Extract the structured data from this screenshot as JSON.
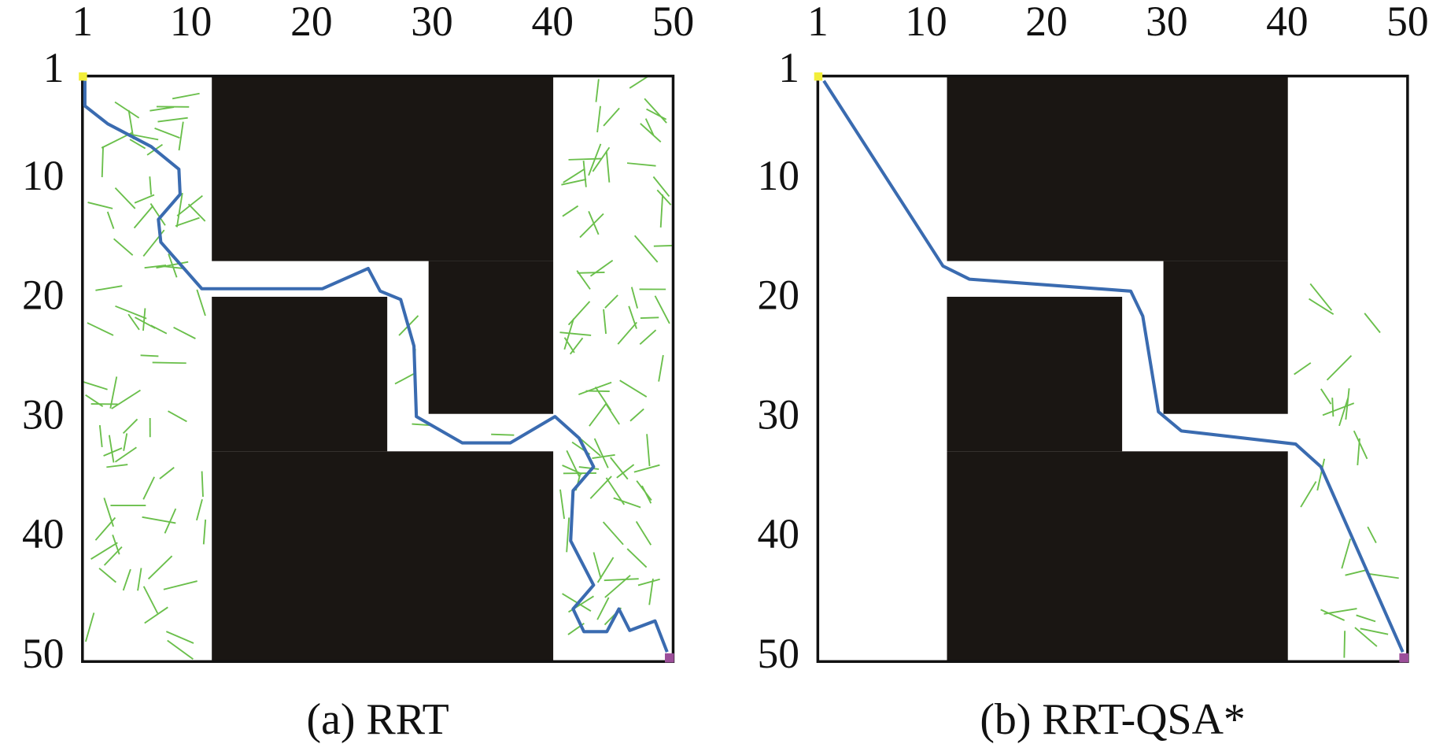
{
  "chart_data": [
    {
      "type": "line",
      "caption": "(a) RRT",
      "y_inverted": true,
      "color": "#3a6bb0",
      "xlim": [
        1,
        50
      ],
      "ylim": [
        1,
        50
      ],
      "xticks": [
        1,
        10,
        20,
        30,
        40,
        50
      ],
      "yticks": [
        1,
        10,
        20,
        30,
        40,
        50
      ],
      "x": [
        1.2,
        1.2,
        3.1,
        6.7,
        9.0,
        9.1,
        7.3,
        7.5,
        10.9,
        20.9,
        24.7,
        25.7,
        27.4,
        28.5,
        28.7,
        32.5,
        36.5,
        40.2,
        42.2,
        43.4,
        41.7,
        41.5,
        43.4,
        41.7,
        42.6,
        44.5,
        45.5,
        46.4,
        48.5,
        49.5
      ],
      "values": [
        1.4,
        3.5,
        5.0,
        6.9,
        8.8,
        10.9,
        13.0,
        14.9,
        18.8,
        18.8,
        17.1,
        19.0,
        19.7,
        23.6,
        29.5,
        31.7,
        31.7,
        29.5,
        31.3,
        33.7,
        35.7,
        39.9,
        43.6,
        45.6,
        47.5,
        47.5,
        45.6,
        47.4,
        46.6,
        49.2
      ]
    },
    {
      "type": "line",
      "caption": "(b) RRT-QSA*",
      "y_inverted": true,
      "color": "#3a6bb0",
      "xlim": [
        1,
        50
      ],
      "ylim": [
        1,
        50
      ],
      "xticks": [
        1,
        10,
        20,
        30,
        40,
        50
      ],
      "yticks": [
        1,
        10,
        20,
        30,
        40,
        50
      ],
      "x": [
        1.5,
        11.4,
        13.6,
        27.0,
        28.0,
        29.3,
        31.2,
        40.7,
        42.8,
        49.6
      ],
      "values": [
        1.4,
        16.9,
        18.0,
        19.0,
        21.1,
        29.1,
        30.7,
        31.8,
        33.7,
        49.2
      ]
    }
  ]
}
